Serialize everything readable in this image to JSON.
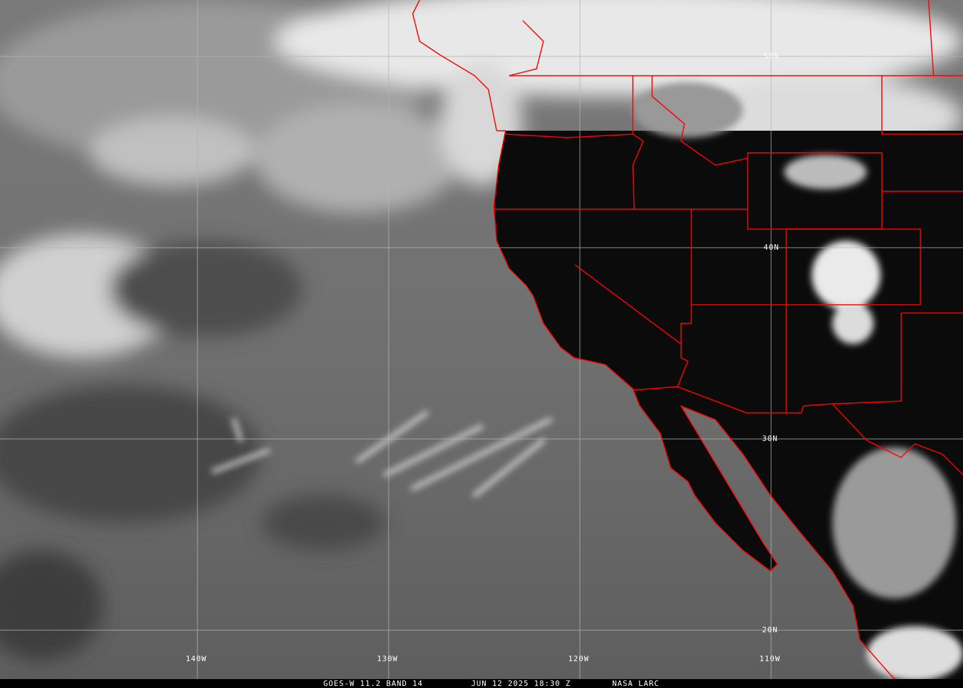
{
  "image": {
    "type": "satellite infrared imagery",
    "colors": {
      "coastline": "#ff0000",
      "grid": "#b4b4b4",
      "land": "#0a0a0a",
      "ocean": "#6a6a6a"
    }
  },
  "grid_labels": {
    "lat": [
      "50N",
      "40N",
      "30N",
      "20N"
    ],
    "lon": [
      "140W",
      "130W",
      "120W",
      "110W"
    ]
  },
  "caption": {
    "product": "GOES-W 11.2 BAND 14",
    "datetime": "JUN 12 2025 18:30 Z",
    "source": "NASA LARC"
  }
}
